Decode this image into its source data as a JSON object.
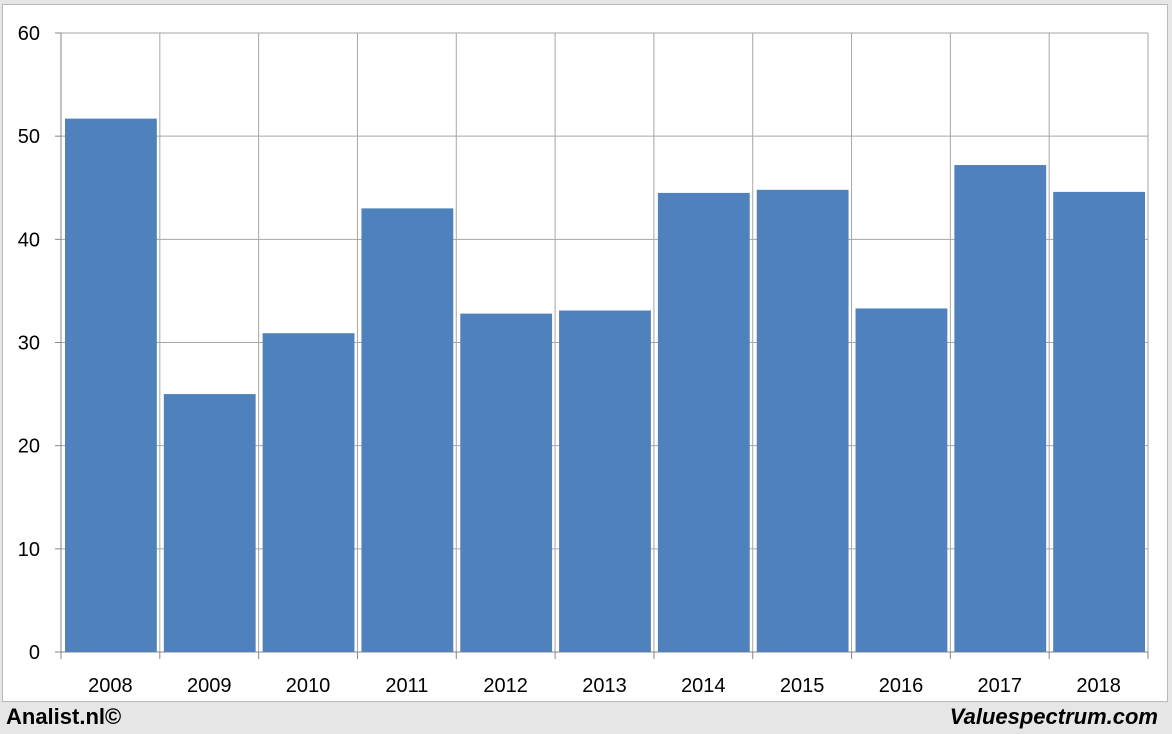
{
  "chart_data": {
    "type": "bar",
    "categories": [
      "2008",
      "2009",
      "2010",
      "2011",
      "2012",
      "2013",
      "2014",
      "2015",
      "2016",
      "2017",
      "2018"
    ],
    "values": [
      51.7,
      25.0,
      30.9,
      43.0,
      32.8,
      33.1,
      44.5,
      44.8,
      33.3,
      47.2,
      44.6
    ],
    "title": "",
    "xlabel": "",
    "ylabel": "",
    "ylim": [
      0,
      60
    ],
    "yticks": [
      "0",
      "10",
      "20",
      "30",
      "40",
      "50",
      "60"
    ],
    "grid": true,
    "bar_color": "#4f81bd"
  },
  "footer": {
    "left": "Analist.nl©",
    "right": "Valuespectrum.com"
  }
}
